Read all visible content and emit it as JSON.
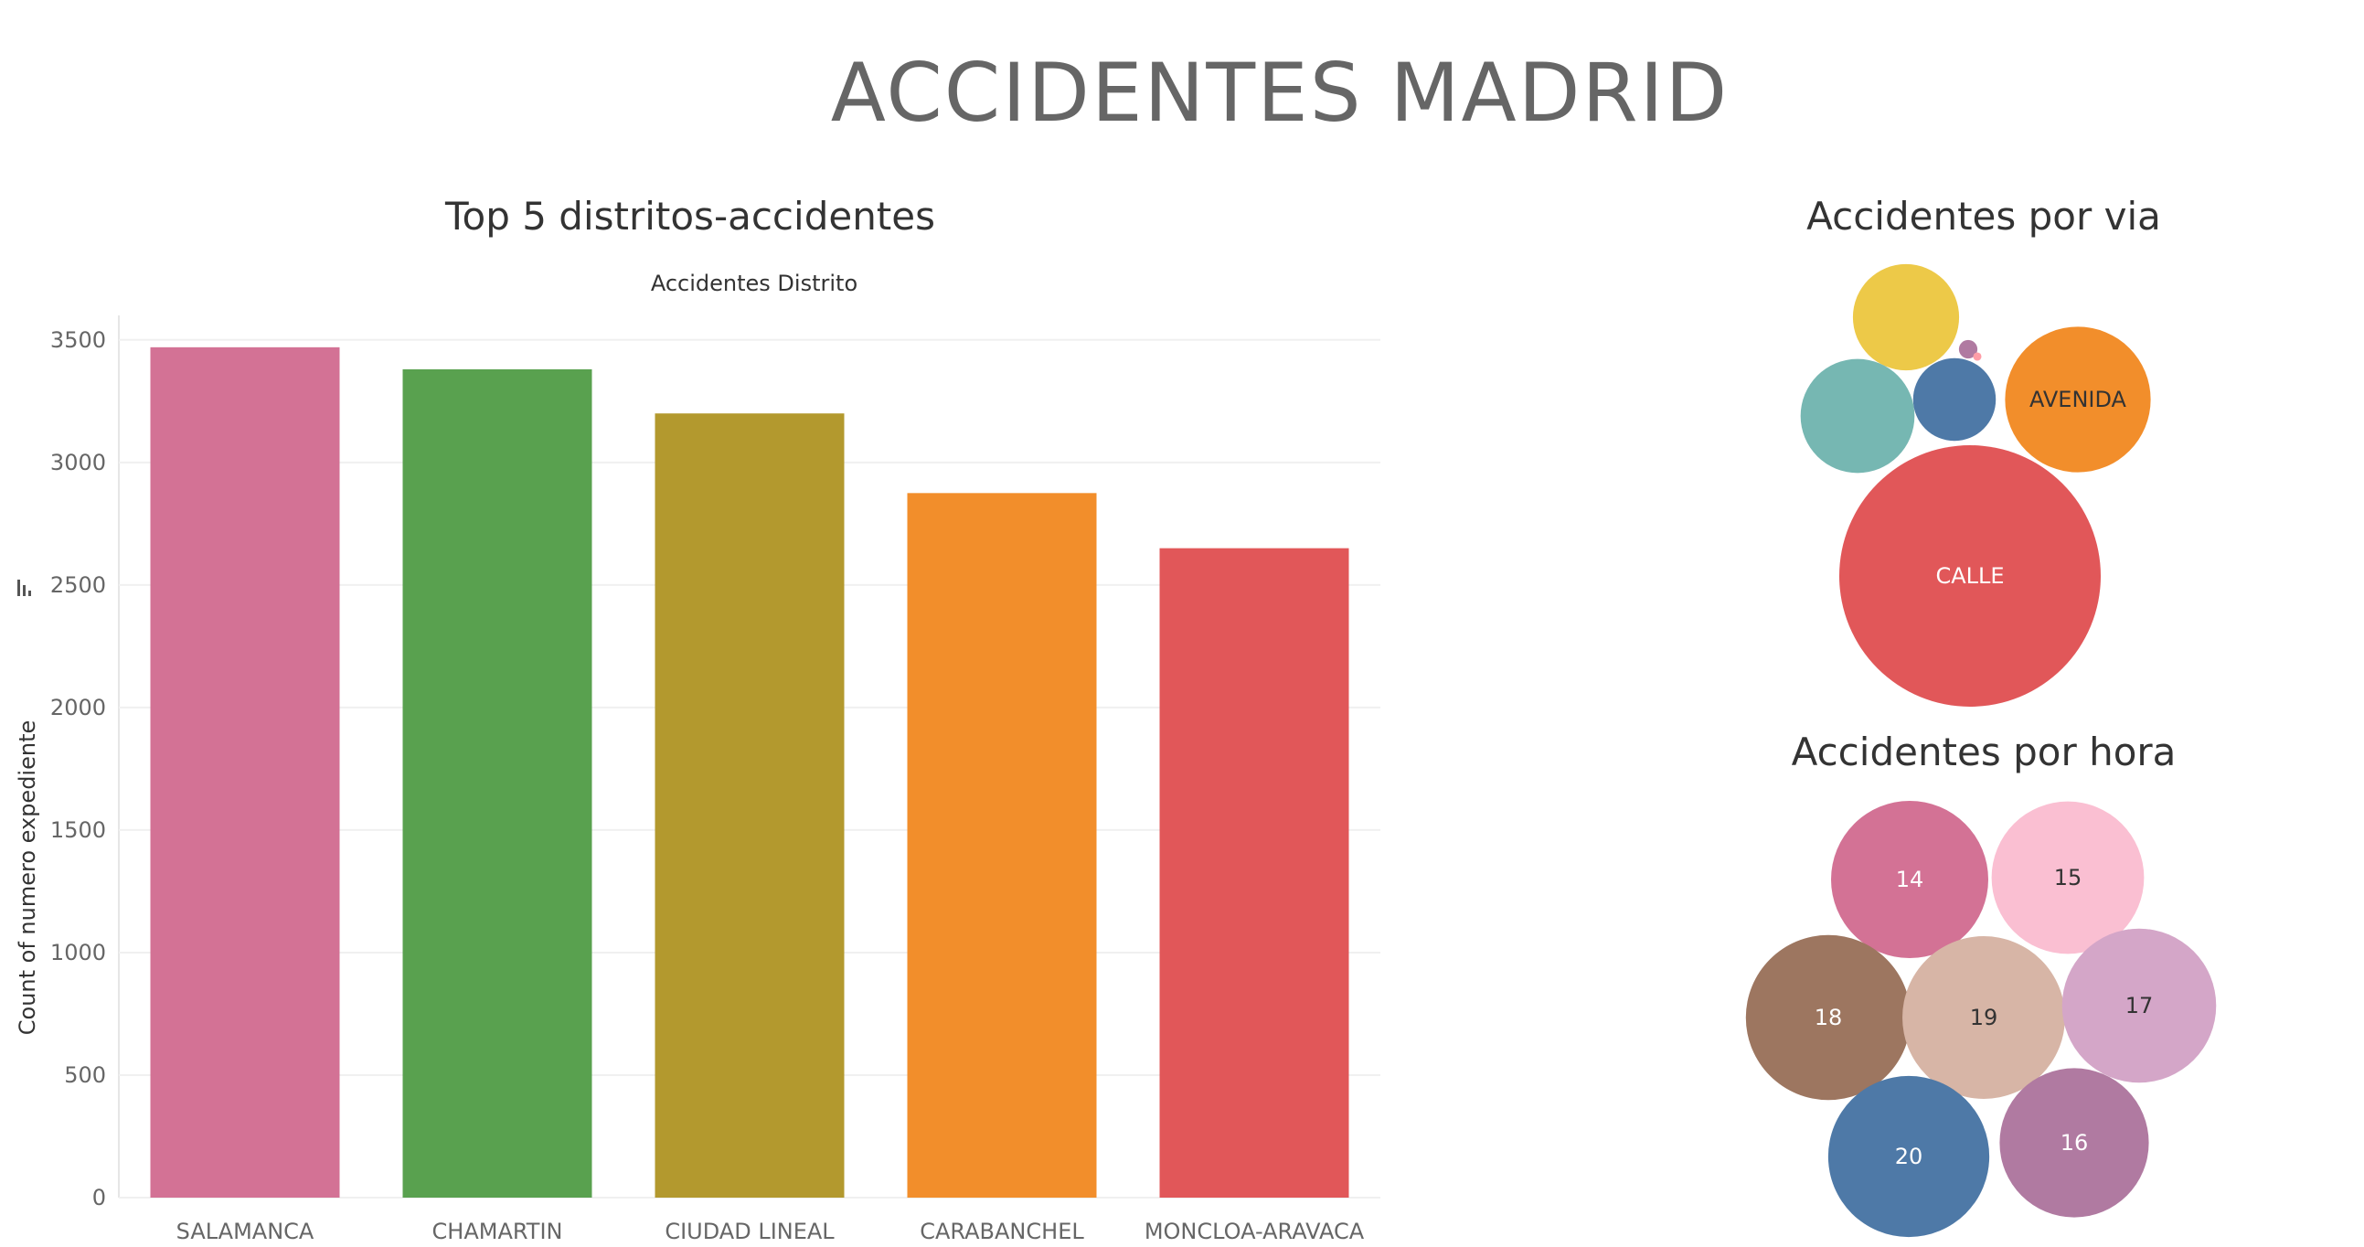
{
  "dashboard": {
    "title": "ACCIDENTES MADRID"
  },
  "chart_data": [
    {
      "type": "bar",
      "title": "Top 5 distritos-accidentes",
      "subtitle": "Accidentes Distrito",
      "xlabel": "",
      "ylabel": "Count of numero expediente",
      "categories": [
        "SALAMANCA",
        "CHAMARTIN",
        "CIUDAD LINEAL",
        "CARABANCHEL",
        "MONCLOA-ARAVACA"
      ],
      "values": [
        3470,
        3380,
        3200,
        2875,
        2650
      ],
      "colors": [
        "#d37295",
        "#59a14f",
        "#b3992e",
        "#f28e2b",
        "#e15759"
      ],
      "ylim": [
        0,
        3600
      ],
      "yticks": [
        0,
        500,
        1000,
        1500,
        2000,
        2500,
        3000,
        3500
      ],
      "grid": true
    },
    {
      "type": "bubble",
      "title": "Accidentes por via",
      "items": [
        {
          "label": "CALLE",
          "value": 100,
          "color": "#e15759",
          "label_color": "#ffffff"
        },
        {
          "label": "AVENIDA",
          "value": 31,
          "color": "#f28e2b",
          "label_color": "#333333"
        },
        {
          "label": "",
          "value": 16.5,
          "color": "#edc948"
        },
        {
          "label": "",
          "value": 19,
          "color": "#76b7b2"
        },
        {
          "label": "",
          "value": 10,
          "color": "#4e79a7"
        },
        {
          "label": "",
          "value": 0.5,
          "color": "#b07aa1"
        },
        {
          "label": "",
          "value": 0.1,
          "color": "#ff9da7"
        }
      ]
    },
    {
      "type": "bubble",
      "title": "Accidentes por hora",
      "items": [
        {
          "label": "14",
          "value": 100,
          "color": "#d37295",
          "label_color": "#ffffff"
        },
        {
          "label": "15",
          "value": 94,
          "color": "#fabfd2",
          "label_color": "#333333"
        },
        {
          "label": "18",
          "value": 110,
          "color": "#9d7660",
          "label_color": "#ffffff"
        },
        {
          "label": "19",
          "value": 107,
          "color": "#d7b5a6",
          "label_color": "#333333"
        },
        {
          "label": "17",
          "value": 96,
          "color": "#d4a6c8",
          "label_color": "#333333"
        },
        {
          "label": "20",
          "value": 105,
          "color": "#4e79a7",
          "label_color": "#ffffff"
        },
        {
          "label": "16",
          "value": 90,
          "color": "#b07aa1",
          "label_color": "#ffffff"
        }
      ]
    }
  ]
}
